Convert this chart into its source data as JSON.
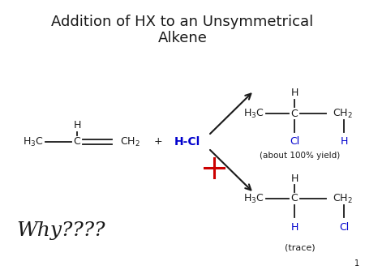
{
  "title_line1": "Addition of HX to an Unsymmetrical",
  "title_line2": "Alkene",
  "title_fontsize": 13,
  "background_color": "#ffffff",
  "text_color": "#1a1a1a",
  "blue_color": "#0000cd",
  "red_color": "#cc0000",
  "why_text": "Why????",
  "why_fontsize": 18,
  "slide_number": "1",
  "fs_chem": 9,
  "fs_annot": 7.5
}
